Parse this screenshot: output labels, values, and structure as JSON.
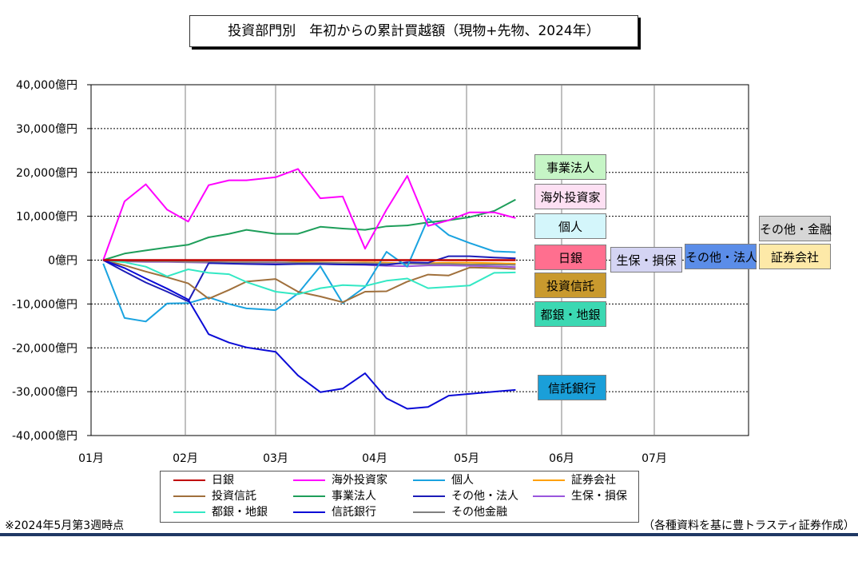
{
  "title": "投資部門別　年初からの累計買越額（現物+先物、2024年）",
  "footnote_left": "※2024年5月第3週時点",
  "footnote_right": "（各種資料を基に豊トラスティ証券作成）",
  "chart_data": {
    "type": "line",
    "x_ticks": [
      "01月",
      "02月",
      "03月",
      "04月",
      "05月",
      "06月",
      "07月"
    ],
    "y_ticks": [
      "40,000億円",
      "30,000億円",
      "20,000億円",
      "10,000億円",
      "0億円",
      "-10,000億円",
      "-20,000億円",
      "-30,000億円",
      "-40,000億円"
    ],
    "ylim": [
      -40000,
      40000
    ],
    "x_dates": [
      "01/05",
      "01/12",
      "01/19",
      "01/26",
      "02/02",
      "02/09",
      "02/16",
      "02/22",
      "03/01",
      "03/08",
      "03/15",
      "03/22",
      "03/29",
      "04/05",
      "04/12",
      "04/19",
      "04/26",
      "05/02",
      "05/10",
      "05/17"
    ],
    "series": [
      {
        "name": "日銀",
        "color": "#c00000",
        "values": [
          0,
          0,
          0,
          0,
          0,
          0,
          0,
          0,
          0,
          0,
          0,
          0,
          0,
          0,
          0,
          0,
          0,
          0,
          0,
          0
        ]
      },
      {
        "name": "海外投資家",
        "color": "#ff00ff",
        "values": [
          0,
          13400,
          17300,
          11500,
          8800,
          17100,
          18200,
          18200,
          18900,
          20800,
          14100,
          14500,
          2600,
          11500,
          19200,
          7800,
          9100,
          10900,
          10900,
          9600
        ]
      },
      {
        "name": "個人",
        "color": "#1aa3e0",
        "values": [
          -800,
          -13200,
          -14000,
          -9900,
          -9800,
          -8500,
          -10000,
          -11000,
          -11400,
          -7600,
          -1400,
          -9800,
          -6100,
          1900,
          -1500,
          9500,
          5700,
          3900,
          2000,
          1800
        ]
      },
      {
        "name": "証券会社",
        "color": "#ffa000",
        "values": [
          0,
          -100,
          -200,
          -300,
          -200,
          -400,
          -500,
          -500,
          -600,
          -400,
          -500,
          -600,
          -500,
          -600,
          -800,
          -700,
          -600,
          -600,
          -700,
          -800
        ]
      },
      {
        "name": "投資信託",
        "color": "#a0703c",
        "values": [
          0,
          -1200,
          -2600,
          -3900,
          -5300,
          -8800,
          -6800,
          -4900,
          -4300,
          -7200,
          -8300,
          -9600,
          -7200,
          -7100,
          -4900,
          -3300,
          -3500,
          -1700,
          -1800,
          -2000
        ]
      },
      {
        "name": "事業法人",
        "color": "#1e9e5a",
        "values": [
          0,
          1500,
          2200,
          2900,
          3500,
          5200,
          6000,
          6900,
          6000,
          6000,
          7600,
          7200,
          6900,
          7700,
          7900,
          8600,
          9100,
          9800,
          11200,
          13800
        ]
      },
      {
        "name": "その他・法人",
        "color": "#1c1cb8",
        "values": [
          0,
          -2600,
          -5100,
          -7200,
          -9400,
          -700,
          -800,
          -900,
          -1000,
          -900,
          -900,
          -1000,
          -1000,
          -1100,
          -500,
          -600,
          900,
          900,
          600,
          400
        ]
      },
      {
        "name": "生保・損保",
        "color": "#9955dd",
        "values": [
          0,
          -300,
          -400,
          -400,
          -500,
          -600,
          -600,
          -700,
          -800,
          -700,
          -900,
          -1000,
          -1100,
          -1300,
          -1400,
          -1200,
          -1200,
          -1300,
          -1400,
          -1600
        ]
      },
      {
        "name": "都銀・地銀",
        "color": "#33e8c4",
        "values": [
          0,
          -500,
          -1500,
          -3700,
          -2100,
          -2900,
          -3200,
          -5000,
          -7200,
          -7800,
          -6400,
          -5700,
          -5900,
          -4700,
          -4200,
          -6400,
          -6100,
          -5800,
          -2900,
          -2800
        ]
      },
      {
        "name": "信託銀行",
        "color": "#0b0bd6",
        "values": [
          0,
          -1800,
          -4200,
          -6500,
          -9000,
          -16900,
          -18800,
          -19900,
          -20900,
          -26300,
          -30100,
          -29300,
          -25800,
          -31500,
          -33900,
          -33500,
          -30900,
          -30500,
          -30000,
          -29600
        ]
      },
      {
        "name": "その他金融",
        "color": "#808080",
        "values": [
          0,
          -200,
          -300,
          -300,
          -400,
          -400,
          -500,
          -500,
          -500,
          -600,
          -600,
          -700,
          -700,
          -800,
          -800,
          -900,
          -900,
          -1000,
          -1000,
          -1100
        ]
      }
    ],
    "callouts": [
      {
        "label": "事業法人",
        "bg": "#c6f5c6"
      },
      {
        "label": "海外投資家",
        "bg": "#fde0f3"
      },
      {
        "label": "個人",
        "bg": "#d4f6fb"
      },
      {
        "label": "日銀",
        "bg": "#ff6f8f"
      },
      {
        "label": "生保・損保",
        "bg": "#d4d4f3"
      },
      {
        "label": "その他・法人",
        "bg": "#5b8de8"
      },
      {
        "label": "証券会社",
        "bg": "#fde9a8"
      },
      {
        "label": "その他・金融",
        "bg": "#d6d6d6"
      },
      {
        "label": "投資信託",
        "bg": "#c99a2e"
      },
      {
        "label": "都銀・地銀",
        "bg": "#3bd8b2"
      },
      {
        "label": "信託銀行",
        "bg": "#1a9fd9"
      }
    ]
  }
}
